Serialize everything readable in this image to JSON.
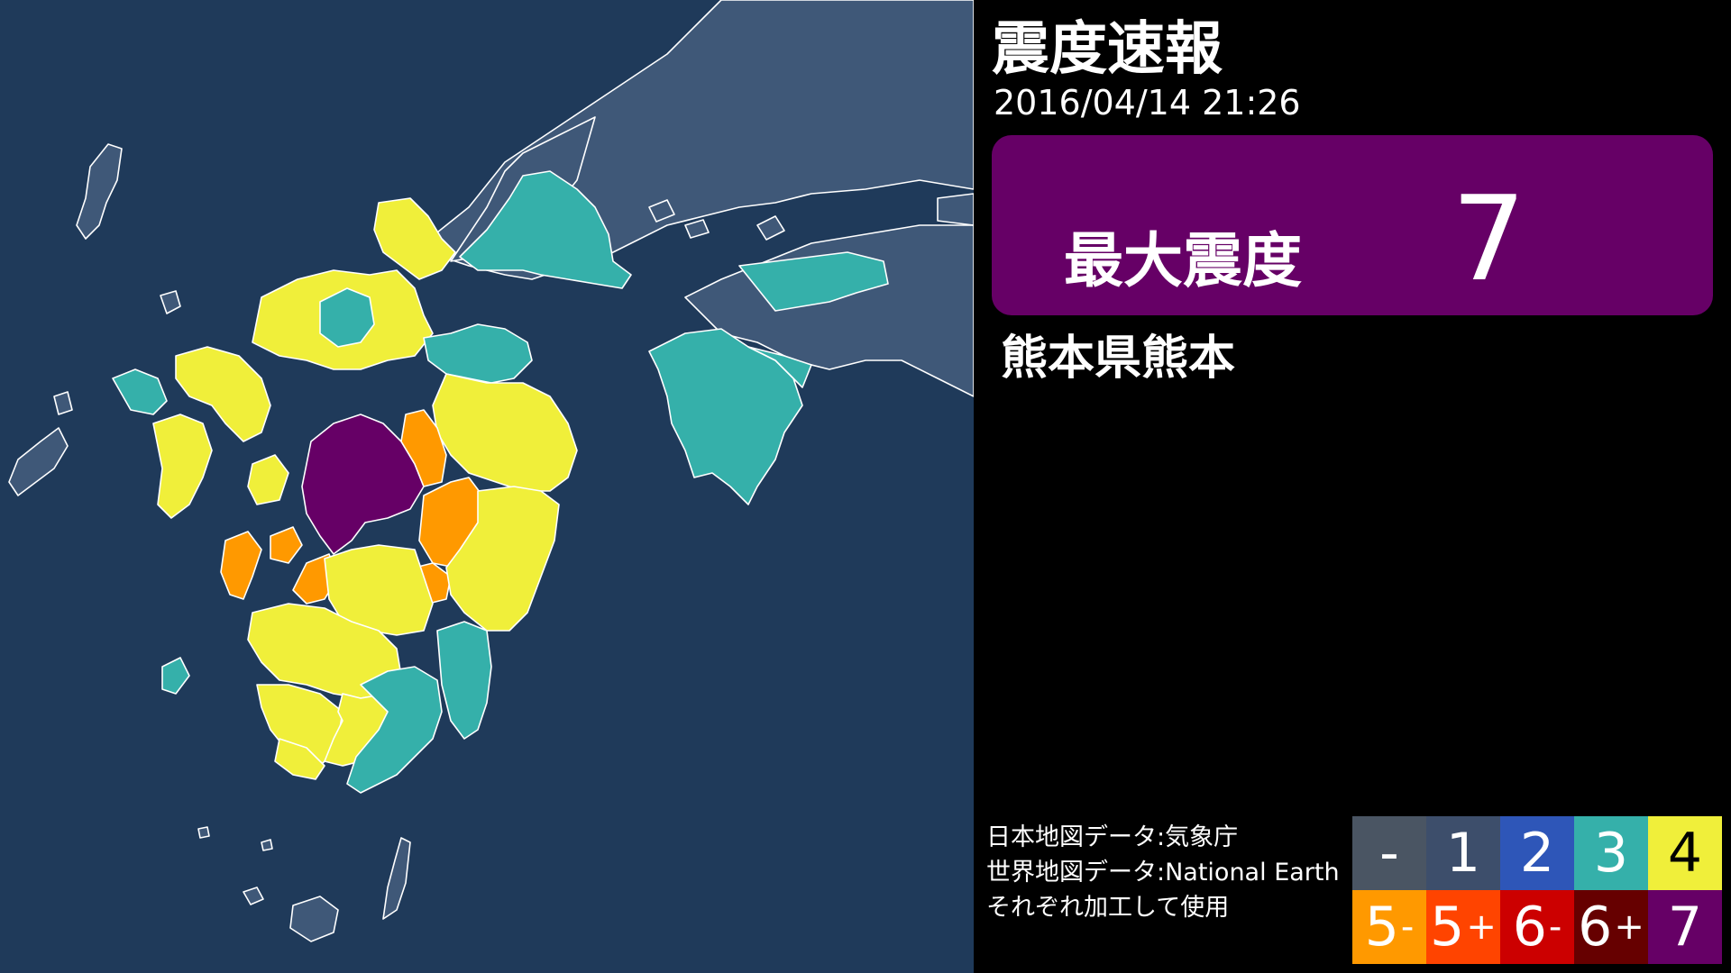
{
  "header": {
    "title": "震度速報",
    "datetime": "2016/04/14 21:26"
  },
  "max_intensity": {
    "label": "最大震度",
    "value": "7",
    "color": "#660066"
  },
  "epicenter_region": "熊本県熊本",
  "credits": [
    "日本地図データ:気象庁",
    "世界地図データ:National Earth",
    "それぞれ加工して使用"
  ],
  "legend": [
    {
      "label": "-",
      "sup": "",
      "color": "#4a5563"
    },
    {
      "label": "1",
      "sup": "",
      "color": "#3d4e6b"
    },
    {
      "label": "2",
      "sup": "",
      "color": "#2e56b8"
    },
    {
      "label": "3",
      "sup": "",
      "color": "#35b0aa"
    },
    {
      "label": "4",
      "sup": "",
      "color": "#f0ef3a"
    },
    {
      "label": "5",
      "sup": "-",
      "color": "#ff9900"
    },
    {
      "label": "5",
      "sup": "+",
      "color": "#ff4400"
    },
    {
      "label": "6",
      "sup": "-",
      "color": "#cc0000"
    },
    {
      "label": "6",
      "sup": "+",
      "color": "#660000"
    },
    {
      "label": "7",
      "sup": "",
      "color": "#660066"
    }
  ],
  "map": {
    "sea_color": "#1f3a5a",
    "region_colors": {
      "no_data": "#3f5878",
      "int3": "#35b0aa",
      "int4": "#f0ef3a",
      "int5_lower": "#ff9900",
      "int7": "#660066"
    }
  }
}
